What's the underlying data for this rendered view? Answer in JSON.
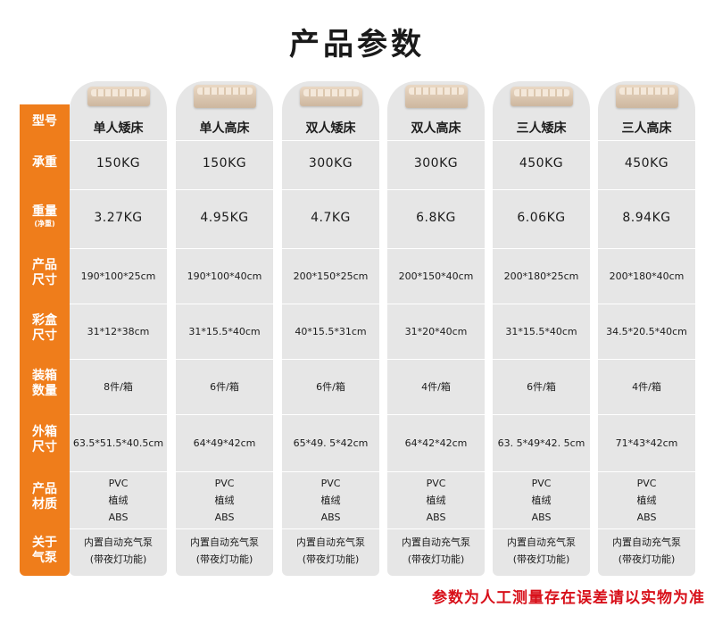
{
  "title": "产品参数",
  "labels": [
    {
      "line1": "型号",
      "line2": ""
    },
    {
      "line1": "承重",
      "line2": ""
    },
    {
      "line1": "重量",
      "line2": "(净重)"
    },
    {
      "line1": "产品",
      "line2": "尺寸"
    },
    {
      "line1": "彩盒",
      "line2": "尺寸"
    },
    {
      "line1": "装箱",
      "line2": "数量"
    },
    {
      "line1": "外箱",
      "line2": "尺寸"
    },
    {
      "line1": "产品",
      "line2": "材质"
    },
    {
      "line1": "关于",
      "line2": "气泵"
    }
  ],
  "products": [
    {
      "name": "单人矮床",
      "load": "150KG",
      "weight": "3.27KG",
      "size": "190*100*25cm",
      "box": "31*12*38cm",
      "qty": "8件/箱",
      "carton": "63.5*51.5*40.5cm",
      "material": [
        "PVC",
        "植绒",
        "ABS"
      ],
      "pump": [
        "内置自动充气泵",
        "(带夜灯功能)"
      ]
    },
    {
      "name": "单人高床",
      "load": "150KG",
      "weight": "4.95KG",
      "size": "190*100*40cm",
      "box": "31*15.5*40cm",
      "qty": "6件/箱",
      "carton": "64*49*42cm",
      "material": [
        "PVC",
        "植绒",
        "ABS"
      ],
      "pump": [
        "内置自动充气泵",
        "(带夜灯功能)"
      ]
    },
    {
      "name": "双人矮床",
      "load": "300KG",
      "weight": "4.7KG",
      "size": "200*150*25cm",
      "box": "40*15.5*31cm",
      "qty": "6件/箱",
      "carton": "65*49. 5*42cm",
      "material": [
        "PVC",
        "植绒",
        "ABS"
      ],
      "pump": [
        "内置自动充气泵",
        "(带夜灯功能)"
      ]
    },
    {
      "name": "双人高床",
      "load": "300KG",
      "weight": "6.8KG",
      "size": "200*150*40cm",
      "box": "31*20*40cm",
      "qty": "4件/箱",
      "carton": "64*42*42cm",
      "material": [
        "PVC",
        "植绒",
        "ABS"
      ],
      "pump": [
        "内置自动充气泵",
        "(带夜灯功能)"
      ]
    },
    {
      "name": "三人矮床",
      "load": "450KG",
      "weight": "6.06KG",
      "size": "200*180*25cm",
      "box": "31*15.5*40cm",
      "qty": "6件/箱",
      "carton": "63. 5*49*42. 5cm",
      "material": [
        "PVC",
        "植绒",
        "ABS"
      ],
      "pump": [
        "内置自动充气泵",
        "(带夜灯功能)"
      ]
    },
    {
      "name": "三人高床",
      "load": "450KG",
      "weight": "8.94KG",
      "size": "200*180*40cm",
      "box": "34.5*20.5*40cm",
      "qty": "4件/箱",
      "carton": "71*43*42cm",
      "material": [
        "PVC",
        "植绒",
        "ABS"
      ],
      "pump": [
        "内置自动充气泵",
        "(带夜灯功能)"
      ]
    }
  ],
  "footer": "参数为人工测量存在误差请以实物为准",
  "colors": {
    "label_bg": "#ef7d1b",
    "column_bg": "#e6e6e6",
    "footer_text": "#d8101a"
  }
}
